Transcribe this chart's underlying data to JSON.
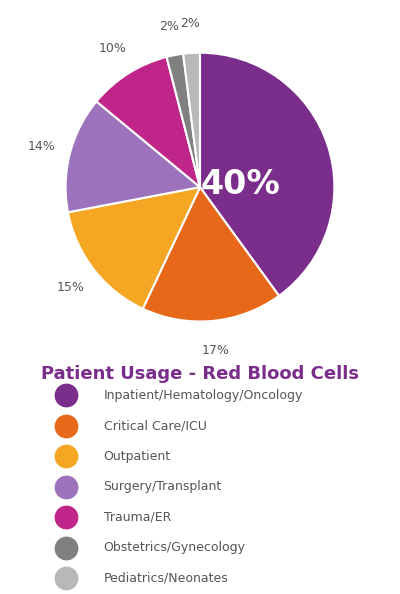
{
  "title": "Patient Usage - Red Blood Cells",
  "title_color": "#7B2D8B",
  "slices": [
    40,
    17,
    15,
    14,
    10,
    2,
    2
  ],
  "labels": [
    "40%",
    "17%",
    "15%",
    "14%",
    "10%",
    "2%",
    "2%"
  ],
  "colors": [
    "#7B2D8B",
    "#E8681A",
    "#F5A623",
    "#9B72BB",
    "#C0268A",
    "#808080",
    "#B8B8B8"
  ],
  "legend_labels": [
    "Inpatient/Hematology/Oncology",
    "Critical Care/ICU",
    "Outpatient",
    "Surgery/Transplant",
    "Trauma/ER",
    "Obstetrics/Gynecology",
    "Pediatrics/Neonates"
  ],
  "legend_colors": [
    "#7B2D8B",
    "#E8681A",
    "#F5A623",
    "#9B72BB",
    "#C0268A",
    "#808080",
    "#B8B8B8"
  ],
  "startangle": 90,
  "background_color": "#ffffff",
  "label_color": "#555555",
  "title_fontsize": 13,
  "legend_fontsize": 9,
  "pct_fontsize": 9,
  "big_label_fontsize": 24
}
